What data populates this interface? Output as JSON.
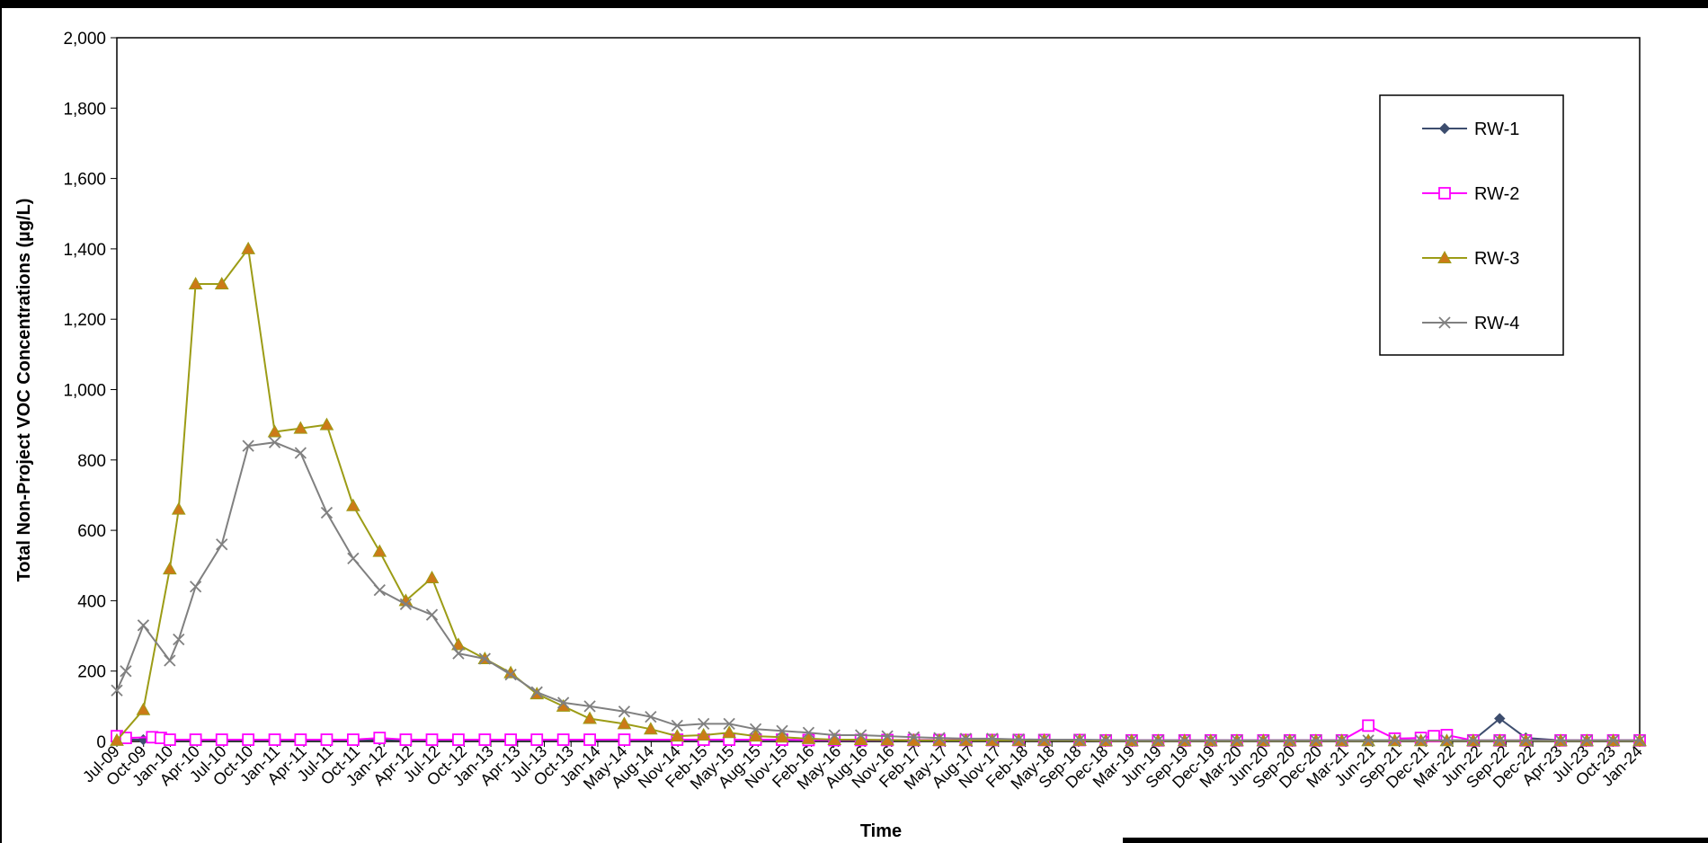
{
  "chart_data": {
    "type": "line",
    "xlabel": "Time",
    "ylabel": "Total Non-Project VOC Concentrations (µg/L)",
    "ylim": [
      0,
      2000
    ],
    "yticks": [
      0,
      200,
      400,
      600,
      800,
      1000,
      1200,
      1400,
      1600,
      1800,
      2000
    ],
    "ytick_labels": [
      "0",
      "200",
      "400",
      "600",
      "800",
      "1,000",
      "1,200",
      "1,400",
      "1,600",
      "1,800",
      "2,000"
    ],
    "xlim": [
      "2009-07-01",
      "2024-01-01"
    ],
    "xtick_labels": [
      "Jul-09",
      "Oct-09",
      "Jan-10",
      "Apr-10",
      "Jul-10",
      "Oct-10",
      "Jan-11",
      "Apr-11",
      "Jul-11",
      "Oct-11",
      "Jan-12",
      "Apr-12",
      "Jul-12",
      "Oct-12",
      "Jan-13",
      "Apr-13",
      "Jul-13",
      "Oct-13",
      "Jan-14",
      "May-14",
      "Aug-14",
      "Nov-14",
      "Feb-15",
      "May-15",
      "Aug-15",
      "Nov-15",
      "Feb-16",
      "May-16",
      "Aug-16",
      "Nov-16",
      "Feb-17",
      "May-17",
      "Aug-17",
      "Nov-17",
      "Feb-18",
      "May-18",
      "Sep-18",
      "Dec-18",
      "Mar-19",
      "Jun-19",
      "Sep-19",
      "Dec-19",
      "Mar-20",
      "Jun-20",
      "Sep-20",
      "Dec-20",
      "Mar-21",
      "Jun-21",
      "Sep-21",
      "Dec-21",
      "Mar-22",
      "Jun-22",
      "Sep-22",
      "Dec-22",
      "Apr-23",
      "Jul-23",
      "Oct-23",
      "Jan-24"
    ],
    "grid": false,
    "legend_position": "top-right",
    "series": [
      {
        "name": "RW-1",
        "color": "#3d4d6e",
        "marker": "diamond",
        "points": [
          [
            "2009-07-01",
            5
          ],
          [
            "2009-10-01",
            5
          ],
          [
            "2010-01-01",
            4
          ],
          [
            "2010-04-01",
            4
          ],
          [
            "2010-07-01",
            4
          ],
          [
            "2010-10-01",
            4
          ],
          [
            "2011-01-01",
            4
          ],
          [
            "2011-04-01",
            4
          ],
          [
            "2011-07-01",
            4
          ],
          [
            "2011-10-01",
            4
          ],
          [
            "2012-01-01",
            4
          ],
          [
            "2012-04-01",
            4
          ],
          [
            "2012-07-01",
            4
          ],
          [
            "2012-10-01",
            4
          ],
          [
            "2013-01-01",
            4
          ],
          [
            "2013-04-01",
            4
          ],
          [
            "2013-07-01",
            4
          ],
          [
            "2013-10-01",
            4
          ],
          [
            "2014-01-01",
            4
          ],
          [
            "2014-05-01",
            4
          ],
          [
            "2014-11-01",
            4
          ],
          [
            "2015-02-01",
            3
          ],
          [
            "2015-05-01",
            3
          ],
          [
            "2015-08-01",
            3
          ],
          [
            "2015-11-01",
            3
          ],
          [
            "2016-02-01",
            3
          ],
          [
            "2016-05-01",
            3
          ],
          [
            "2016-08-01",
            3
          ],
          [
            "2016-11-01",
            3
          ],
          [
            "2017-02-01",
            3
          ],
          [
            "2017-05-01",
            3
          ],
          [
            "2017-08-01",
            3
          ],
          [
            "2017-11-01",
            3
          ],
          [
            "2018-02-01",
            3
          ],
          [
            "2018-05-01",
            3
          ],
          [
            "2018-09-01",
            3
          ],
          [
            "2018-12-01",
            3
          ],
          [
            "2019-03-01",
            3
          ],
          [
            "2019-06-01",
            3
          ],
          [
            "2019-09-01",
            3
          ],
          [
            "2019-12-01",
            3
          ],
          [
            "2020-03-01",
            3
          ],
          [
            "2020-06-01",
            3
          ],
          [
            "2020-09-01",
            3
          ],
          [
            "2020-12-01",
            3
          ],
          [
            "2021-03-01",
            3
          ],
          [
            "2021-06-01",
            3
          ],
          [
            "2021-09-01",
            3
          ],
          [
            "2021-12-01",
            3
          ],
          [
            "2022-03-01",
            3
          ],
          [
            "2022-06-01",
            3
          ],
          [
            "2022-09-01",
            65
          ],
          [
            "2022-12-01",
            10
          ],
          [
            "2023-04-01",
            3
          ],
          [
            "2023-07-01",
            3
          ],
          [
            "2023-10-01",
            3
          ],
          [
            "2024-01-01",
            3
          ]
        ]
      },
      {
        "name": "RW-2",
        "color": "#ff00ff",
        "marker": "square",
        "points": [
          [
            "2009-07-01",
            15
          ],
          [
            "2009-08-01",
            10
          ],
          [
            "2009-11-01",
            12
          ],
          [
            "2009-12-01",
            10
          ],
          [
            "2010-01-01",
            5
          ],
          [
            "2010-04-01",
            5
          ],
          [
            "2010-07-01",
            5
          ],
          [
            "2010-10-01",
            5
          ],
          [
            "2011-01-01",
            5
          ],
          [
            "2011-04-01",
            5
          ],
          [
            "2011-07-01",
            5
          ],
          [
            "2011-10-01",
            5
          ],
          [
            "2012-01-01",
            10
          ],
          [
            "2012-04-01",
            5
          ],
          [
            "2012-07-01",
            5
          ],
          [
            "2012-10-01",
            5
          ],
          [
            "2013-01-01",
            5
          ],
          [
            "2013-04-01",
            5
          ],
          [
            "2013-07-01",
            5
          ],
          [
            "2013-10-01",
            5
          ],
          [
            "2014-01-01",
            5
          ],
          [
            "2014-05-01",
            5
          ],
          [
            "2014-11-01",
            5
          ],
          [
            "2015-02-01",
            5
          ],
          [
            "2015-05-01",
            5
          ],
          [
            "2015-08-01",
            5
          ],
          [
            "2015-11-01",
            5
          ],
          [
            "2016-02-01",
            4
          ],
          [
            "2016-05-01",
            4
          ],
          [
            "2016-08-01",
            4
          ],
          [
            "2016-11-01",
            4
          ],
          [
            "2017-02-01",
            4
          ],
          [
            "2017-05-01",
            4
          ],
          [
            "2017-08-01",
            4
          ],
          [
            "2017-11-01",
            4
          ],
          [
            "2018-02-01",
            4
          ],
          [
            "2018-05-01",
            4
          ],
          [
            "2018-09-01",
            4
          ],
          [
            "2018-12-01",
            3
          ],
          [
            "2019-03-01",
            3
          ],
          [
            "2019-06-01",
            3
          ],
          [
            "2019-09-01",
            3
          ],
          [
            "2019-12-01",
            3
          ],
          [
            "2020-03-01",
            3
          ],
          [
            "2020-06-01",
            3
          ],
          [
            "2020-09-01",
            3
          ],
          [
            "2020-12-01",
            3
          ],
          [
            "2021-03-01",
            3
          ],
          [
            "2021-06-01",
            45
          ],
          [
            "2021-09-01",
            8
          ],
          [
            "2021-12-01",
            10
          ],
          [
            "2022-01-15",
            15
          ],
          [
            "2022-03-01",
            18
          ],
          [
            "2022-06-01",
            3
          ],
          [
            "2022-09-01",
            3
          ],
          [
            "2022-12-01",
            3
          ],
          [
            "2023-04-01",
            3
          ],
          [
            "2023-07-01",
            3
          ],
          [
            "2023-10-01",
            3
          ],
          [
            "2024-01-01",
            3
          ]
        ]
      },
      {
        "name": "RW-3",
        "color": "#9c9c16",
        "marker_fill": "#cc7a18",
        "marker": "triangle",
        "points": [
          [
            "2009-07-01",
            3
          ],
          [
            "2009-10-01",
            90
          ],
          [
            "2010-01-01",
            490
          ],
          [
            "2010-02-01",
            660
          ],
          [
            "2010-04-01",
            1300
          ],
          [
            "2010-07-01",
            1300
          ],
          [
            "2010-10-01",
            1400
          ],
          [
            "2011-01-01",
            880
          ],
          [
            "2011-04-01",
            890
          ],
          [
            "2011-07-01",
            900
          ],
          [
            "2011-10-01",
            670
          ],
          [
            "2012-01-01",
            540
          ],
          [
            "2012-04-01",
            400
          ],
          [
            "2012-07-01",
            465
          ],
          [
            "2012-10-01",
            275
          ],
          [
            "2013-01-01",
            235
          ],
          [
            "2013-04-01",
            195
          ],
          [
            "2013-07-01",
            135
          ],
          [
            "2013-10-01",
            100
          ],
          [
            "2014-01-01",
            65
          ],
          [
            "2014-05-01",
            50
          ],
          [
            "2014-08-01",
            35
          ],
          [
            "2014-11-01",
            15
          ],
          [
            "2015-02-01",
            18
          ],
          [
            "2015-05-01",
            25
          ],
          [
            "2015-08-01",
            15
          ],
          [
            "2015-11-01",
            12
          ],
          [
            "2016-02-01",
            8
          ],
          [
            "2016-05-01",
            5
          ],
          [
            "2016-08-01",
            5
          ],
          [
            "2016-11-01",
            4
          ],
          [
            "2017-02-01",
            3
          ],
          [
            "2017-05-01",
            3
          ],
          [
            "2017-08-01",
            3
          ],
          [
            "2017-11-01",
            3
          ],
          [
            "2018-02-01",
            3
          ],
          [
            "2018-05-01",
            3
          ],
          [
            "2018-09-01",
            3
          ],
          [
            "2018-12-01",
            2
          ],
          [
            "2019-03-01",
            2
          ],
          [
            "2019-06-01",
            2
          ],
          [
            "2019-09-01",
            2
          ],
          [
            "2019-12-01",
            2
          ],
          [
            "2020-03-01",
            2
          ],
          [
            "2020-06-01",
            2
          ],
          [
            "2020-09-01",
            2
          ],
          [
            "2020-12-01",
            2
          ],
          [
            "2021-03-01",
            2
          ],
          [
            "2021-06-01",
            2
          ],
          [
            "2021-09-01",
            2
          ],
          [
            "2021-12-01",
            2
          ],
          [
            "2022-03-01",
            2
          ],
          [
            "2022-06-01",
            2
          ],
          [
            "2022-09-01",
            2
          ],
          [
            "2022-12-01",
            2
          ],
          [
            "2023-04-01",
            2
          ],
          [
            "2023-07-01",
            2
          ],
          [
            "2023-10-01",
            2
          ],
          [
            "2024-01-01",
            2
          ]
        ]
      },
      {
        "name": "RW-4",
        "color": "#808080",
        "marker": "x",
        "points": [
          [
            "2009-07-01",
            145
          ],
          [
            "2009-08-01",
            200
          ],
          [
            "2009-10-01",
            330
          ],
          [
            "2010-01-01",
            230
          ],
          [
            "2010-02-01",
            290
          ],
          [
            "2010-04-01",
            440
          ],
          [
            "2010-07-01",
            560
          ],
          [
            "2010-10-01",
            840
          ],
          [
            "2011-01-01",
            850
          ],
          [
            "2011-04-01",
            820
          ],
          [
            "2011-07-01",
            650
          ],
          [
            "2011-10-01",
            520
          ],
          [
            "2012-01-01",
            430
          ],
          [
            "2012-04-01",
            390
          ],
          [
            "2012-07-01",
            360
          ],
          [
            "2012-10-01",
            250
          ],
          [
            "2013-01-01",
            235
          ],
          [
            "2013-04-01",
            190
          ],
          [
            "2013-07-01",
            140
          ],
          [
            "2013-10-01",
            110
          ],
          [
            "2014-01-01",
            100
          ],
          [
            "2014-05-01",
            85
          ],
          [
            "2014-08-01",
            70
          ],
          [
            "2014-11-01",
            45
          ],
          [
            "2015-02-01",
            50
          ],
          [
            "2015-05-01",
            50
          ],
          [
            "2015-08-01",
            35
          ],
          [
            "2015-11-01",
            30
          ],
          [
            "2016-02-01",
            25
          ],
          [
            "2016-05-01",
            18
          ],
          [
            "2016-08-01",
            18
          ],
          [
            "2016-11-01",
            15
          ],
          [
            "2017-02-01",
            12
          ],
          [
            "2017-05-01",
            10
          ],
          [
            "2017-08-01",
            8
          ],
          [
            "2017-11-01",
            8
          ],
          [
            "2018-02-01",
            6
          ],
          [
            "2018-05-01",
            5
          ],
          [
            "2018-09-01",
            5
          ],
          [
            "2018-12-01",
            4
          ],
          [
            "2019-03-01",
            3
          ],
          [
            "2019-06-01",
            3
          ],
          [
            "2019-09-01",
            3
          ],
          [
            "2019-12-01",
            3
          ],
          [
            "2020-03-01",
            3
          ],
          [
            "2020-06-01",
            3
          ],
          [
            "2020-09-01",
            3
          ],
          [
            "2020-12-01",
            3
          ],
          [
            "2021-03-01",
            3
          ],
          [
            "2021-06-01",
            3
          ],
          [
            "2021-09-01",
            3
          ],
          [
            "2021-12-01",
            3
          ],
          [
            "2022-03-01",
            3
          ],
          [
            "2022-06-01",
            3
          ],
          [
            "2022-09-01",
            3
          ],
          [
            "2022-12-01",
            3
          ],
          [
            "2023-04-01",
            3
          ],
          [
            "2023-07-01",
            3
          ],
          [
            "2023-10-01",
            3
          ],
          [
            "2024-01-01",
            3
          ]
        ]
      }
    ]
  }
}
